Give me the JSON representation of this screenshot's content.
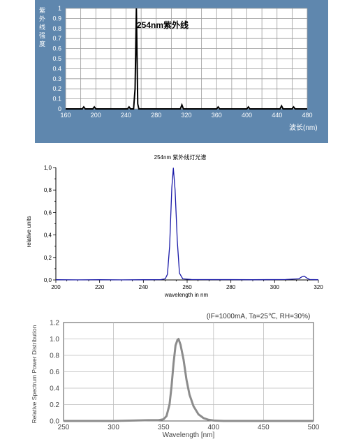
{
  "chart_data": [
    {
      "type": "line",
      "title": "",
      "ylabel": "紫外线强度",
      "xlabel": "波长(nm)",
      "annotation": "254nm紫外线",
      "xlim": [
        160,
        480
      ],
      "ylim": [
        0,
        1
      ],
      "x_ticks": [
        "160",
        "200",
        "240",
        "280",
        "320",
        "360",
        "400",
        "440",
        "480"
      ],
      "y_ticks": [
        "0",
        "0.1",
        "0.2",
        "0.3",
        "0.4",
        "0.5",
        "0.6",
        "0.7",
        "0.8",
        "0.9",
        "1"
      ],
      "grid": true,
      "colors": {
        "background": "#5f87ae",
        "grid": "#ffffff",
        "plot_area": "#ffffff",
        "line": "#000000"
      },
      "series": [
        {
          "x": [
            160,
            182,
            184,
            186,
            196,
            198,
            200,
            242,
            244,
            246,
            250,
            252,
            253.7,
            255.5,
            257,
            312,
            314,
            316,
            360,
            362,
            364,
            400,
            402,
            404,
            444,
            446,
            448,
            460,
            462,
            464,
            480
          ],
          "y": [
            0,
            0,
            0.02,
            0,
            0,
            0.02,
            0,
            0,
            0.02,
            0,
            0,
            0.2,
            1.0,
            0.05,
            0,
            0,
            0.04,
            0,
            0,
            0.02,
            0,
            0,
            0.02,
            0,
            0,
            0.03,
            0,
            0,
            0.02,
            0,
            0
          ]
        }
      ]
    },
    {
      "type": "line",
      "title": "254nm 紫外线灯光谱",
      "xlabel": "wavelength in nm",
      "ylabel": "relative units",
      "xlim": [
        200,
        320
      ],
      "ylim": [
        0,
        1
      ],
      "x_ticks": [
        "200",
        "220",
        "240",
        "260",
        "280",
        "300",
        "320"
      ],
      "y_ticks": [
        "0,0",
        "0,2",
        "0,4",
        "0,6",
        "0,8",
        "1,0"
      ],
      "grid": false,
      "colors": {
        "line": "#1a1aa8",
        "axis": "#000000"
      },
      "series": [
        {
          "x": [
            200,
            210,
            220,
            230,
            240,
            248,
            250,
            251,
            252,
            253,
            253.7,
            254.5,
            255.5,
            256.5,
            258,
            262,
            270,
            280,
            290,
            300,
            305,
            311,
            312.5,
            313.5,
            314.5,
            316,
            320
          ],
          "y": [
            0.002,
            0.001,
            0.002,
            0.001,
            0.002,
            0.003,
            0.01,
            0.05,
            0.3,
            0.82,
            0.995,
            0.8,
            0.35,
            0.06,
            0.01,
            0.004,
            0.003,
            0.003,
            0.002,
            0.003,
            0.004,
            0.01,
            0.028,
            0.034,
            0.02,
            0.004,
            0.002
          ]
        }
      ]
    },
    {
      "type": "line",
      "title": "(IF=1000mA, Ta=25℃, RH=30%)",
      "xlabel": "Wavelength [nm]",
      "ylabel": "Relative Spectrum Power Distribution",
      "xlim": [
        250,
        500
      ],
      "ylim": [
        0,
        1.2
      ],
      "x_ticks": [
        "250",
        "300",
        "350",
        "400",
        "450",
        "500"
      ],
      "y_ticks": [
        "0.0",
        "0.2",
        "0.4",
        "0.6",
        "0.8",
        "1.0",
        "1.2"
      ],
      "grid": true,
      "colors": {
        "line": "#8c8c8c",
        "grid": "#bdbdbd",
        "axis": "#666666"
      },
      "series": [
        {
          "x": [
            250,
            300,
            320,
            335,
            345,
            350,
            353,
            356,
            358,
            360,
            362,
            364,
            365,
            367,
            370,
            373,
            376,
            380,
            385,
            390,
            395,
            400,
            410,
            500
          ],
          "y": [
            0,
            0,
            0.005,
            0.01,
            0.01,
            0.02,
            0.06,
            0.2,
            0.42,
            0.7,
            0.92,
            0.99,
            1.0,
            0.93,
            0.75,
            0.5,
            0.32,
            0.18,
            0.08,
            0.035,
            0.015,
            0.005,
            0,
            0
          ]
        }
      ]
    }
  ]
}
